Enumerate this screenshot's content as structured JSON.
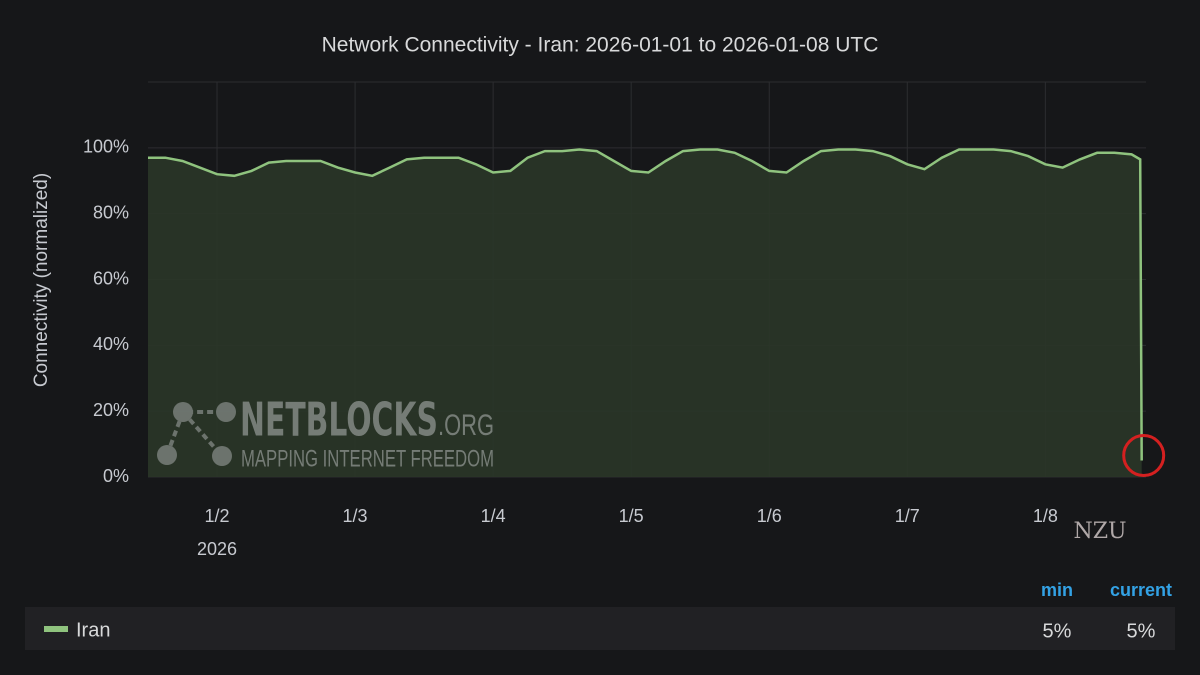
{
  "chart_data": {
    "type": "area",
    "title": "Network Connectivity - Iran: 2026-01-01 to 2026-01-08 UTC",
    "y_label": "Connectivity (normalized)",
    "xlim": [
      "2026-01-01T12:00",
      "2026-01-08T17:30"
    ],
    "xticks": [
      {
        "value": "2026-01-02T00:00",
        "label": "1/2"
      },
      {
        "value": "2026-01-03T00:00",
        "label": "1/3"
      },
      {
        "value": "2026-01-04T00:00",
        "label": "1/4"
      },
      {
        "value": "2026-01-05T00:00",
        "label": "1/5"
      },
      {
        "value": "2026-01-06T00:00",
        "label": "1/6"
      },
      {
        "value": "2026-01-07T00:00",
        "label": "1/7"
      },
      {
        "value": "2026-01-08T00:00",
        "label": "1/8"
      }
    ],
    "x_year_label": "2026",
    "ylim": [
      0,
      120
    ],
    "yticks": [
      {
        "value": 0,
        "label": "0%"
      },
      {
        "value": 20,
        "label": "20%"
      },
      {
        "value": 40,
        "label": "40%"
      },
      {
        "value": 60,
        "label": "60%"
      },
      {
        "value": 80,
        "label": "80%"
      },
      {
        "value": 100,
        "label": "100%"
      }
    ],
    "grid": true,
    "x": [
      "2026-01-01T12:00",
      "2026-01-01T15:00",
      "2026-01-01T18:00",
      "2026-01-01T21:00",
      "2026-01-02T00:00",
      "2026-01-02T03:00",
      "2026-01-02T06:00",
      "2026-01-02T09:00",
      "2026-01-02T12:00",
      "2026-01-02T15:00",
      "2026-01-02T18:00",
      "2026-01-02T21:00",
      "2026-01-03T00:00",
      "2026-01-03T03:00",
      "2026-01-03T06:00",
      "2026-01-03T09:00",
      "2026-01-03T12:00",
      "2026-01-03T15:00",
      "2026-01-03T18:00",
      "2026-01-03T21:00",
      "2026-01-04T00:00",
      "2026-01-04T03:00",
      "2026-01-04T06:00",
      "2026-01-04T09:00",
      "2026-01-04T12:00",
      "2026-01-04T15:00",
      "2026-01-04T18:00",
      "2026-01-04T21:00",
      "2026-01-05T00:00",
      "2026-01-05T03:00",
      "2026-01-05T06:00",
      "2026-01-05T09:00",
      "2026-01-05T12:00",
      "2026-01-05T15:00",
      "2026-01-05T18:00",
      "2026-01-05T21:00",
      "2026-01-06T00:00",
      "2026-01-06T03:00",
      "2026-01-06T06:00",
      "2026-01-06T09:00",
      "2026-01-06T12:00",
      "2026-01-06T15:00",
      "2026-01-06T18:00",
      "2026-01-06T21:00",
      "2026-01-07T00:00",
      "2026-01-07T03:00",
      "2026-01-07T06:00",
      "2026-01-07T09:00",
      "2026-01-07T12:00",
      "2026-01-07T15:00",
      "2026-01-07T18:00",
      "2026-01-07T21:00",
      "2026-01-08T00:00",
      "2026-01-08T03:00",
      "2026-01-08T06:00",
      "2026-01-08T09:00",
      "2026-01-08T12:00",
      "2026-01-08T15:00",
      "2026-01-08T16:30",
      "2026-01-08T16:45"
    ],
    "series": [
      {
        "name": "Iran",
        "color": "#8fc37e",
        "fill": "#2a3628",
        "values": [
          97,
          97,
          96,
          94,
          92,
          91.5,
          93,
          95.5,
          96,
          96,
          96,
          94,
          92.5,
          91.5,
          94,
          96.5,
          97,
          97,
          97,
          95,
          92.5,
          93,
          97,
          99,
          99,
          99.5,
          99,
          96,
          93,
          92.5,
          96,
          99,
          99.5,
          99.5,
          98.5,
          96,
          93,
          92.5,
          96,
          99,
          99.5,
          99.5,
          99,
          97.5,
          95,
          93.5,
          97,
          99.5,
          99.5,
          99.5,
          99,
          97.5,
          95,
          94,
          96.5,
          98.5,
          98.5,
          98,
          96.5,
          5
        ]
      }
    ],
    "legend": {
      "columns": [
        "min",
        "current"
      ],
      "values": [
        5,
        5
      ],
      "value_labels": [
        "5%",
        "5%"
      ]
    },
    "watermark": {
      "name": "NETBLOCKS",
      "suffix": ".ORG",
      "tagline": "MAPPING INTERNET FREEDOM"
    },
    "overlay_logo": "NZU"
  }
}
